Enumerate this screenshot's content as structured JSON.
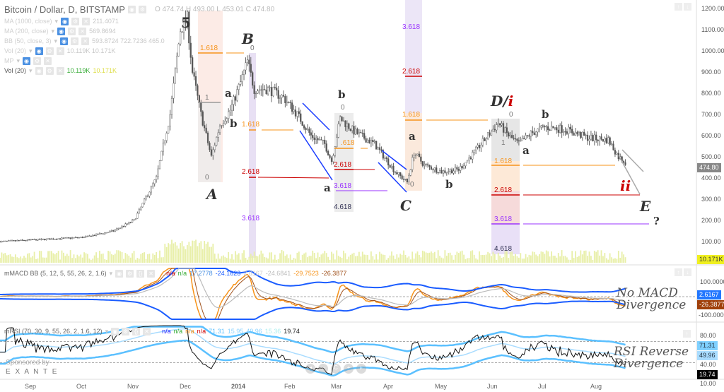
{
  "header": {
    "title": "Bitcoin / Dollar, D, BITSTAMP",
    "ohlc": "O 474.74  H 493.00  L 453.01  C 474.80"
  },
  "indicators": [
    {
      "name": "MA (1000, close)",
      "values": "211.4071"
    },
    {
      "name": "MA (200, close)",
      "values": "569.8694"
    },
    {
      "name": "BB (50, close, 3)",
      "values": "593.8724   722.7236   465.0"
    },
    {
      "name": "Vol (20)",
      "values": "10.119K   10.171K"
    },
    {
      "name": "MP",
      "values": ""
    },
    {
      "name": "Vol (20)",
      "v1": "10.119K",
      "v2": "10.171K"
    }
  ],
  "macd": {
    "title": "mMACD BB (5, 12, 5, 55, 26, 2, 1.6)",
    "vals": [
      "n/a",
      "n/a",
      "17.2778",
      "-24.1623",
      "2.6167",
      "-24.6841",
      "-29.7523",
      "-26.3877"
    ],
    "note1": "No MACD",
    "note2": "Divergence",
    "axis": [
      "100.0000",
      "-100.0000"
    ],
    "badge_blue": "2.6167",
    "badge_brown": "-26.3877"
  },
  "rsi": {
    "title": "mRSI (70, 30, 9, 55, 26, 2, 1.6, 12)",
    "vals": [
      "n/a",
      "n/a",
      "n/a",
      "n/a",
      "71.31",
      "15.95",
      "49.96",
      "15.36",
      "19.74"
    ],
    "note1": "RSI Reverse",
    "note2": "Divergence",
    "axis": [
      "80.00",
      "40.00",
      "10.00"
    ],
    "badges": [
      "71.31",
      "49.96",
      "19.74"
    ]
  },
  "price_axis": [
    "1200.00",
    "1100.00",
    "1000.00",
    "900.00",
    "800.00",
    "700.00",
    "600.00",
    "500.00",
    "400.00",
    "300.00",
    "200.00",
    "100.00"
  ],
  "last_price": "474.80",
  "last_volume": "10.171K",
  "months": [
    "Sep",
    "Oct",
    "Nov",
    "Dec",
    "2014",
    "Feb",
    "Mar",
    "Apr",
    "May",
    "Jun",
    "Jul",
    "Aug"
  ],
  "sponsor": {
    "line1": "Sponsored by",
    "line2": "E X A N T E"
  },
  "waves": {
    "w5": "5",
    "B": "B",
    "A": "A",
    "a1": "a",
    "b1": "b",
    "b2": "b",
    "a2": "a",
    "C": "C",
    "a3": "a",
    "b3": "b",
    "D": "D/",
    "Di": "i",
    "b4": "b",
    "a4": "a",
    "ii": "ii",
    "E": "E",
    "q": "?"
  },
  "fibs": {
    "f1618a": "1.618",
    "f1a": "1",
    "f0a": "0",
    "f0b": "0",
    "f1618b": "1.618",
    "f2618b": "2.618",
    "f3618b": "3.618",
    "f0c": "0",
    "f618c": ".618",
    "f2618c": "2.618",
    "f3618c": "3.618",
    "f4618c": "4.618",
    "f3618d": "3.618",
    "f2618d": "2.618",
    "f1618d": "1.618",
    "f0d": "0",
    "f0e": "0",
    "f1e": "1",
    "f1618e": "1.618",
    "f2618e": "2.618",
    "f3618e": "3.618",
    "f4618e": "4.618"
  },
  "colors": {
    "up": "#ffffff",
    "down": "#555555",
    "orange": "#f7931a",
    "red": "#cc0000",
    "purple": "#9933ff",
    "blue": "#1a5cff",
    "lightblue": "#5bc0ff"
  },
  "price_path": [
    [
      0,
      100
    ],
    [
      49,
      120
    ],
    [
      66,
      150
    ],
    [
      78,
      200
    ],
    [
      91,
      400
    ],
    [
      99,
      700
    ],
    [
      105,
      1100
    ],
    [
      109,
      1150
    ],
    [
      112,
      900
    ],
    [
      117,
      700
    ],
    [
      123,
      500
    ],
    [
      128,
      650
    ],
    [
      134,
      720
    ],
    [
      140,
      850
    ],
    [
      144,
      950
    ],
    [
      148,
      820
    ],
    [
      156,
      820
    ],
    [
      165,
      780
    ],
    [
      173,
      700
    ],
    [
      181,
      600
    ],
    [
      189,
      560
    ],
    [
      193,
      480
    ],
    [
      198,
      680
    ],
    [
      206,
      620
    ],
    [
      218,
      560
    ],
    [
      230,
      430
    ],
    [
      237,
      380
    ],
    [
      241,
      520
    ],
    [
      247,
      460
    ],
    [
      257,
      430
    ],
    [
      267,
      440
    ],
    [
      276,
      520
    ],
    [
      284,
      600
    ],
    [
      290,
      660
    ],
    [
      296,
      600
    ],
    [
      302,
      560
    ],
    [
      309,
      610
    ],
    [
      317,
      640
    ],
    [
      329,
      630
    ],
    [
      342,
      590
    ],
    [
      354,
      580
    ],
    [
      360,
      500
    ],
    [
      364,
      474.8
    ]
  ]
}
